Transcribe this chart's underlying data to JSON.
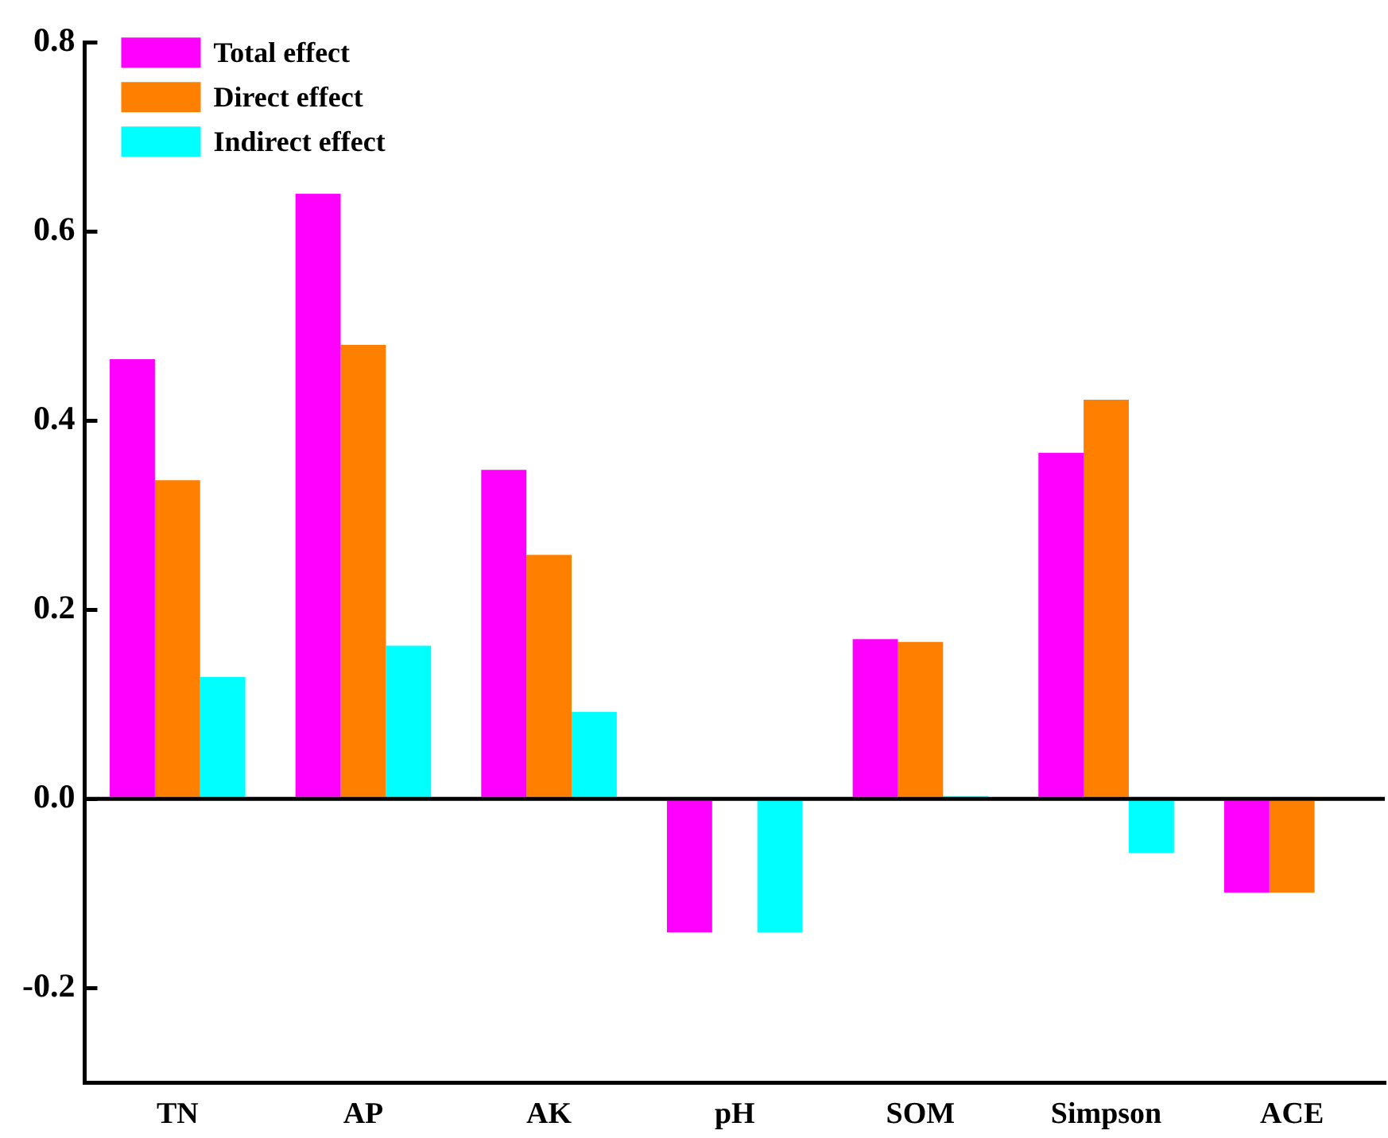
{
  "chart_data": {
    "type": "bar",
    "categories": [
      "TN",
      "AP",
      "AK",
      "pH",
      "SOM",
      "Simpson",
      "ACE"
    ],
    "series": [
      {
        "name": "Total effect",
        "color": "#ff00ff",
        "values": [
          0.465,
          0.64,
          0.348,
          -0.141,
          0.169,
          0.366,
          -0.099
        ]
      },
      {
        "name": "Direct effect",
        "color": "#ff8000",
        "values": [
          0.337,
          0.48,
          0.258,
          0,
          0.166,
          0.422,
          -0.099
        ]
      },
      {
        "name": "Indirect effect",
        "color": "#00ffff",
        "values": [
          0.129,
          0.162,
          0.092,
          -0.141,
          0.003,
          -0.057,
          0
        ]
      }
    ],
    "ylim": [
      -0.3,
      0.8
    ],
    "yticks": [
      -0.2,
      {
        "value": 0,
        "label": "0.0"
      },
      0.2,
      0.4,
      0.6,
      0.8
    ],
    "grid": false,
    "legend": "top left",
    "ref_lines": [
      {
        "axis": "y",
        "value": 0
      }
    ]
  }
}
